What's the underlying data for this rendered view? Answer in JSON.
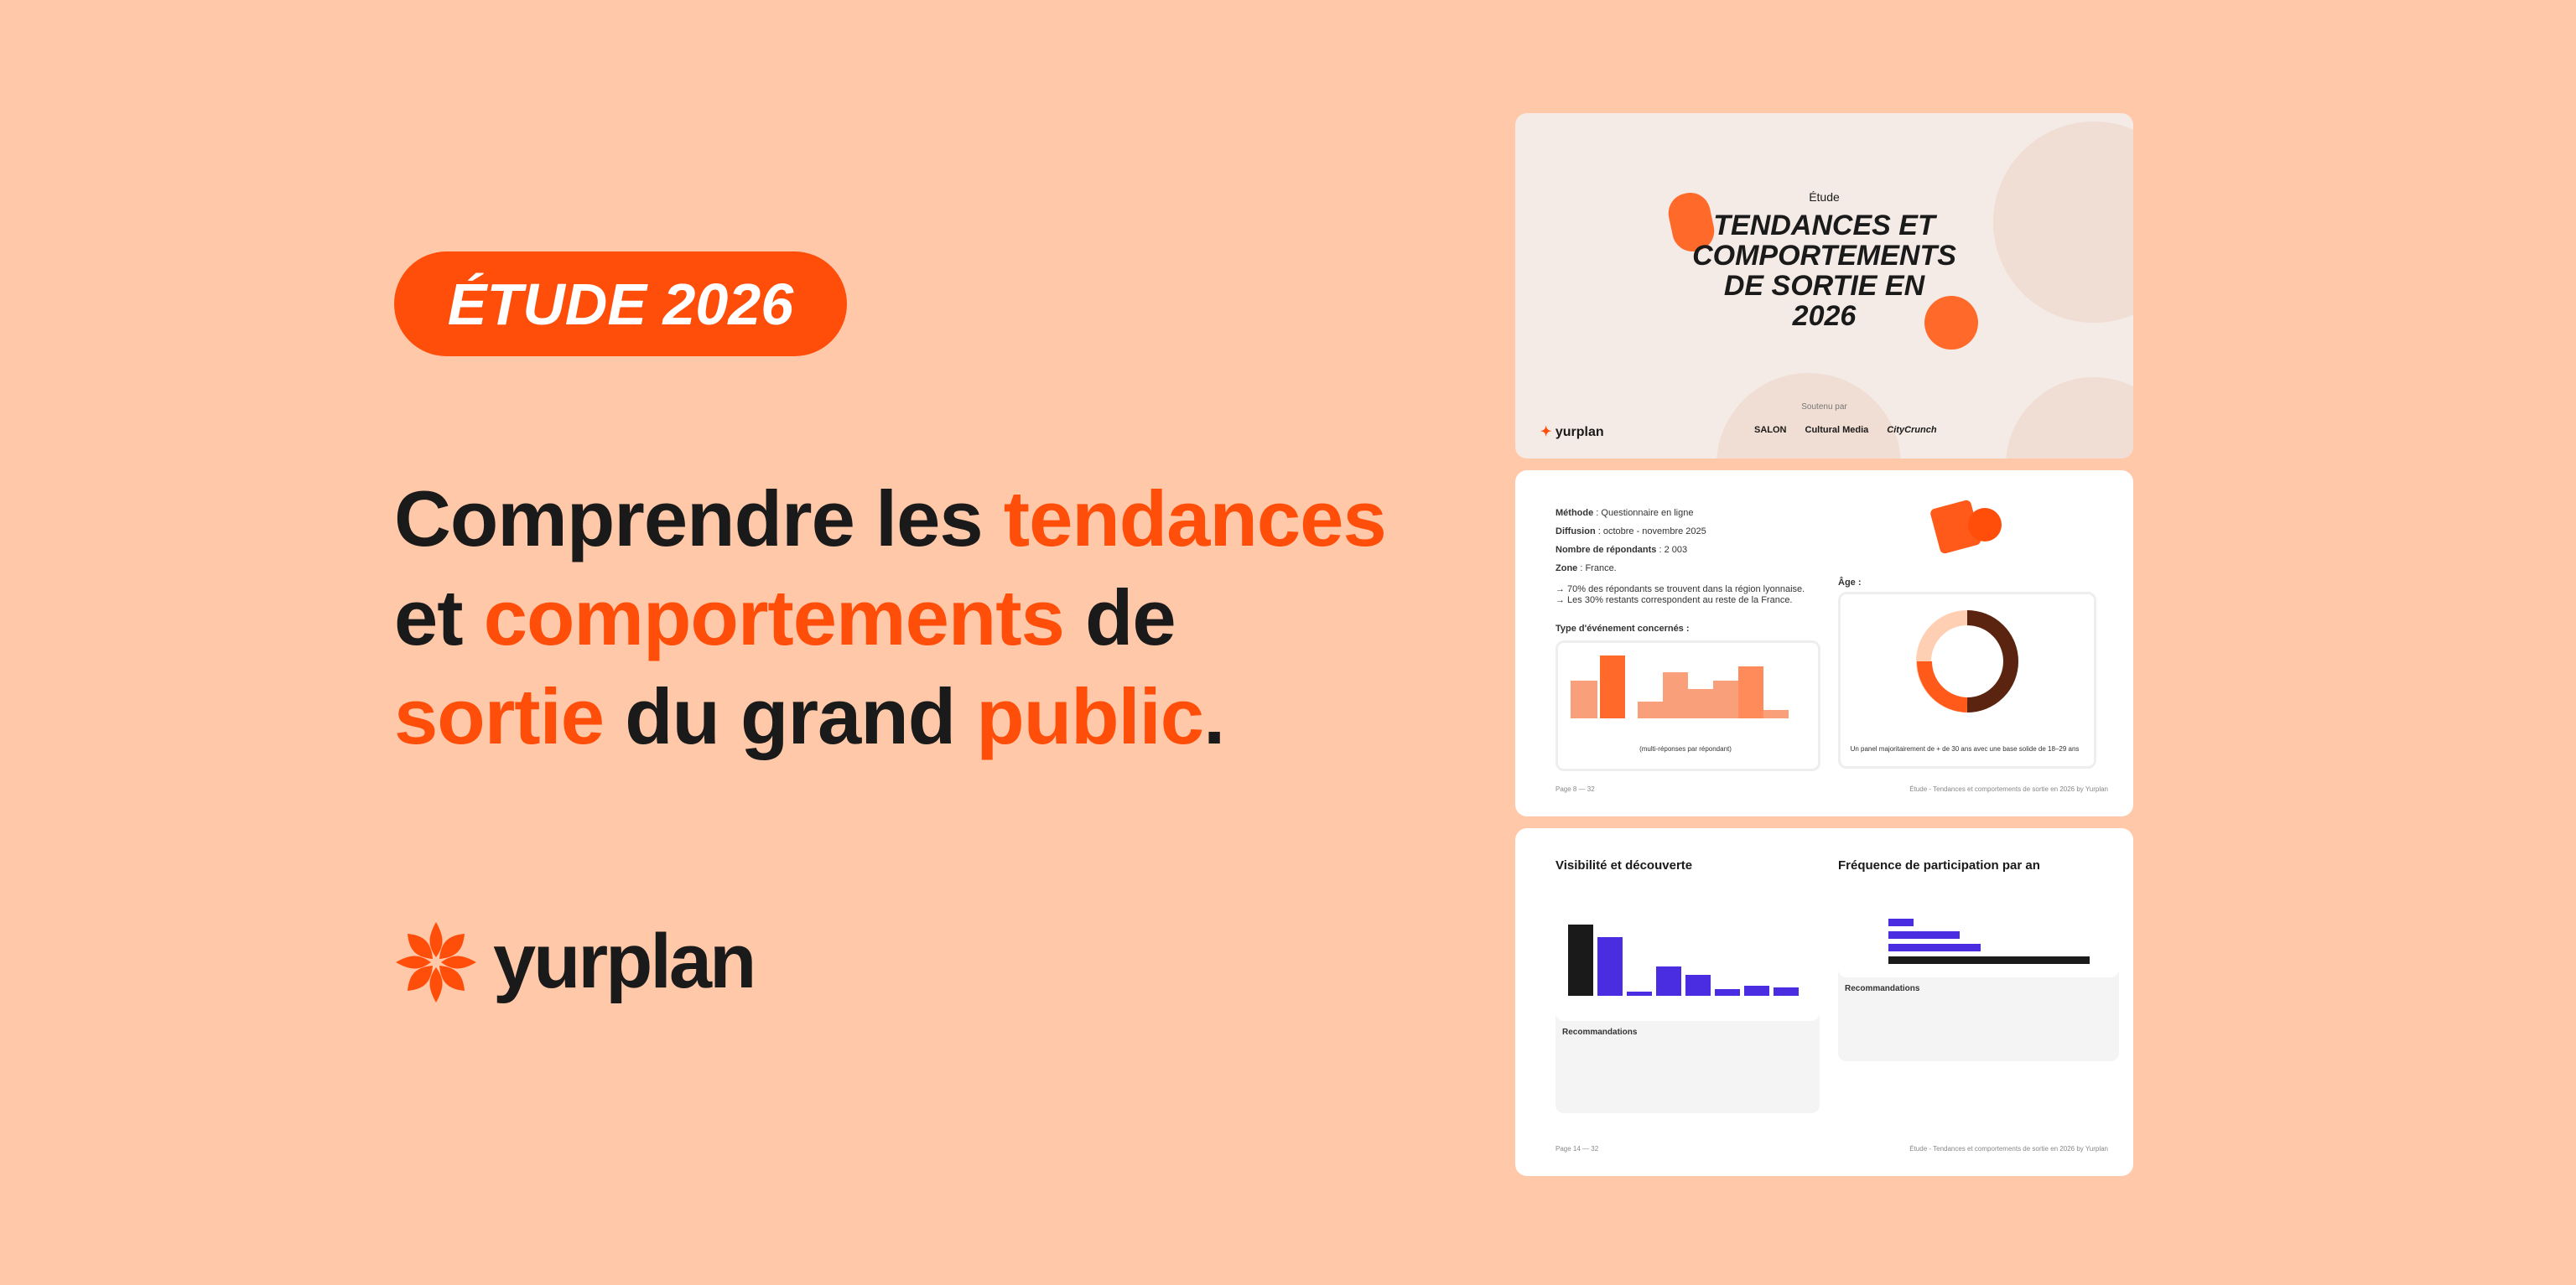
{
  "badge": "ÉTUDE 2026",
  "headline": [
    "Comprendre les ",
    "tendances",
    "et ",
    "comportements",
    " de",
    "sortie",
    " du grand ",
    "public",
    "."
  ],
  "brand": "yurplan",
  "cover": {
    "kicker": "Étude",
    "title_lines": [
      "TENDANCES ET",
      "COMPORTEMENTS",
      "DE SORTIE EN",
      "2026"
    ],
    "supported_by": "Soutenu par",
    "brand": "yurplan",
    "sponsors": [
      "SALON",
      "Cultural Media",
      "CityCrunch"
    ]
  },
  "method": {
    "rows": [
      {
        "label": "Méthode",
        "value": " : Questionnaire en ligne"
      },
      {
        "label": "Diffusion",
        "value": " : octobre - novembre 2025"
      },
      {
        "label": "Nombre de répondants",
        "value": " : 2 003"
      },
      {
        "label": "Zone",
        "value": " : France."
      }
    ],
    "notes": [
      "→ 70% des répondants se trouvent dans la région lyonnaise.",
      "→ Les 30% restants correspondent au reste de la France."
    ],
    "event_title": "Type d'événement concernés :",
    "event_caption": "(multi-réponses par répondant)",
    "age_title": "Âge :",
    "age_caption": "Un panel majoritairement de + de 30 ans avec une base solide de 18–29 ans",
    "page": "Page 8 — 32",
    "footer": "Étude - Tendances et comportements de sortie en 2026 by Yurplan"
  },
  "visibility": {
    "title": "Visibilité et découverte",
    "freq_title": "Fréquence de participation par an",
    "reco": "Recommandations",
    "reco2": "Recommandations",
    "page": "Page 14 — 32",
    "footer": "Étude - Tendances et comportements de sortie en 2026 by Yurplan"
  }
}
